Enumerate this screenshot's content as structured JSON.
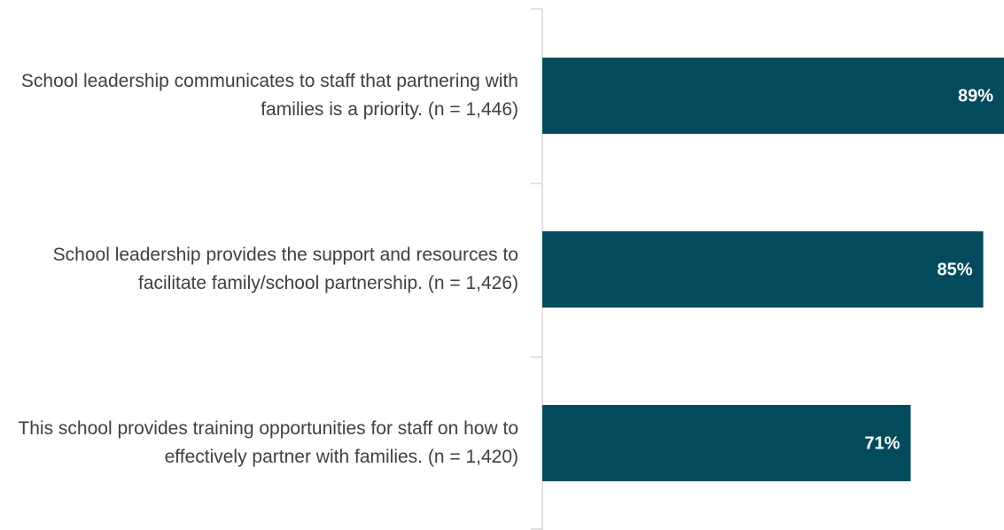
{
  "chart_data": {
    "type": "bar",
    "orientation": "horizontal",
    "categories": [
      "School leadership communicates to staff that partnering with families is a priority. (n = 1,446)",
      "School leadership provides the support and resources to facilitate family/school partnership. (n = 1,426)",
      "This school provides training opportunities for staff on how to effectively partner with families. (n = 1,420)"
    ],
    "values": [
      89,
      85,
      71
    ],
    "value_labels": [
      "89%",
      "85%",
      "71%"
    ],
    "color": "#034b5c"
  }
}
